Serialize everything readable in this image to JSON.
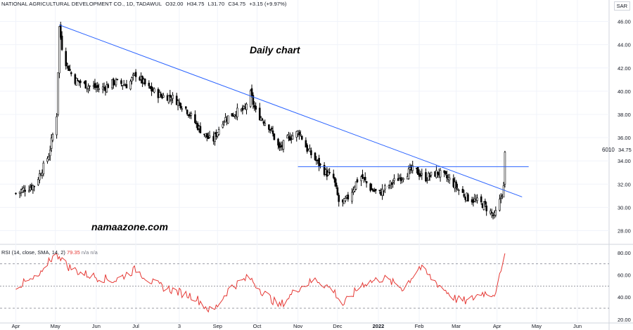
{
  "header": {
    "title": "NATIONAL AGRICULTURAL DEVELOPMENT CO., 1D, TADAWUL",
    "open": "O32.00",
    "high": "H34.75",
    "low": "L31.70",
    "close": "C34.75",
    "change": "+3.15 (+9.97%)"
  },
  "currency": "SAR",
  "annotations": {
    "daily": "Daily chart",
    "site": "namaazone.com"
  },
  "rsi_header": {
    "label": "RSI (14, close, SMA, 14, 2)",
    "value": "79.35",
    "na1": "n/a",
    "na2": "n/a"
  },
  "side_labels": {
    "volume": "6010",
    "last_price": "34.75"
  },
  "colors": {
    "candle": "#000000",
    "trendline": "#2962ff",
    "rsi": "#e53935",
    "grid": "#f0f3fa",
    "band": "#787b86"
  },
  "chart_data": [
    {
      "type": "candlestick",
      "title": "",
      "y_ticks": [
        "46.00",
        "44.00",
        "42.00",
        "40.00",
        "38.00",
        "36.00",
        "34.00",
        "32.00",
        "30.00",
        "28.00"
      ],
      "ylim": [
        27,
        47
      ],
      "x_ticks": [
        "Apr",
        "May",
        "Jun",
        "Jul",
        "3",
        "Sep",
        "Oct",
        "Nov",
        "Dec",
        "2022",
        "Feb",
        "Mar",
        "Apr",
        "May",
        "Jun"
      ],
      "close_path": [
        [
          "2021-04-01",
          31.2
        ],
        [
          "2021-04-08",
          31.6
        ],
        [
          "2021-04-15",
          31.9
        ],
        [
          "2021-04-22",
          33.5
        ],
        [
          "2021-04-26",
          34.5
        ],
        [
          "2021-05-02",
          38.0
        ],
        [
          "2021-05-04",
          45.5
        ],
        [
          "2021-05-07",
          43.0
        ],
        [
          "2021-05-15",
          41.0
        ],
        [
          "2021-05-25",
          40.5
        ],
        [
          "2021-06-05",
          40.2
        ],
        [
          "2021-06-15",
          40.8
        ],
        [
          "2021-06-25",
          40.5
        ],
        [
          "2021-07-01",
          41.5
        ],
        [
          "2021-07-10",
          40.3
        ],
        [
          "2021-07-20",
          39.6
        ],
        [
          "2021-07-28",
          39.5
        ],
        [
          "2021-08-03",
          39.0
        ],
        [
          "2021-08-08",
          38.5
        ],
        [
          "2021-08-18",
          36.8
        ],
        [
          "2021-08-28",
          35.6
        ],
        [
          "2021-09-05",
          37.5
        ],
        [
          "2021-09-15",
          38.2
        ],
        [
          "2021-09-22",
          38.4
        ],
        [
          "2021-09-25",
          40.1
        ],
        [
          "2021-09-30",
          38.2
        ],
        [
          "2021-10-10",
          37.0
        ],
        [
          "2021-10-18",
          35.0
        ],
        [
          "2021-10-25",
          36.0
        ],
        [
          "2021-11-02",
          36.5
        ],
        [
          "2021-11-08",
          35.0
        ],
        [
          "2021-11-15",
          34.0
        ],
        [
          "2021-11-22",
          33.0
        ],
        [
          "2021-11-28",
          32.5
        ],
        [
          "2021-12-03",
          30.0
        ],
        [
          "2021-12-10",
          31.0
        ],
        [
          "2021-12-18",
          32.8
        ],
        [
          "2021-12-27",
          31.5
        ],
        [
          "2022-01-02",
          31.2
        ],
        [
          "2022-01-10",
          32.0
        ],
        [
          "2022-01-20",
          32.8
        ],
        [
          "2022-01-28",
          33.3
        ],
        [
          "2022-02-05",
          32.5
        ],
        [
          "2022-02-15",
          33.0
        ],
        [
          "2022-02-25",
          32.3
        ],
        [
          "2022-03-03",
          31.5
        ],
        [
          "2022-03-10",
          30.8
        ],
        [
          "2022-03-17",
          30.5
        ],
        [
          "2022-03-22",
          30.2
        ],
        [
          "2022-03-30",
          29.2
        ],
        [
          "2022-04-03",
          30.5
        ],
        [
          "2022-04-06",
          31.7
        ],
        [
          "2022-04-07",
          34.75
        ]
      ],
      "last_close": 34.75
    },
    {
      "type": "line",
      "title": "RSI",
      "y_ticks": [
        "80.00",
        "60.00",
        "40.00",
        "20.00"
      ],
      "ylim": [
        18,
        85
      ],
      "bands": [
        70,
        50,
        30
      ],
      "x": [
        "2021-04-01",
        "2021-04-08",
        "2021-04-15",
        "2021-04-22",
        "2021-04-26",
        "2021-05-04",
        "2021-05-10",
        "2021-05-20",
        "2021-06-01",
        "2021-06-15",
        "2021-07-01",
        "2021-07-15",
        "2021-08-01",
        "2021-08-15",
        "2021-08-28",
        "2021-09-10",
        "2021-09-25",
        "2021-10-05",
        "2021-10-18",
        "2021-11-01",
        "2021-11-15",
        "2021-11-28",
        "2021-12-05",
        "2021-12-20",
        "2022-01-05",
        "2022-01-20",
        "2022-02-01",
        "2022-02-15",
        "2022-03-01",
        "2022-03-10",
        "2022-03-20",
        "2022-03-30",
        "2022-04-03",
        "2022-04-07"
      ],
      "values": [
        50,
        53,
        56,
        62,
        74,
        78,
        68,
        62,
        58,
        55,
        65,
        52,
        45,
        40,
        26,
        48,
        58,
        45,
        32,
        48,
        56,
        46,
        33,
        52,
        57,
        48,
        67,
        52,
        38,
        36,
        44,
        43,
        58,
        79.35
      ]
    }
  ]
}
